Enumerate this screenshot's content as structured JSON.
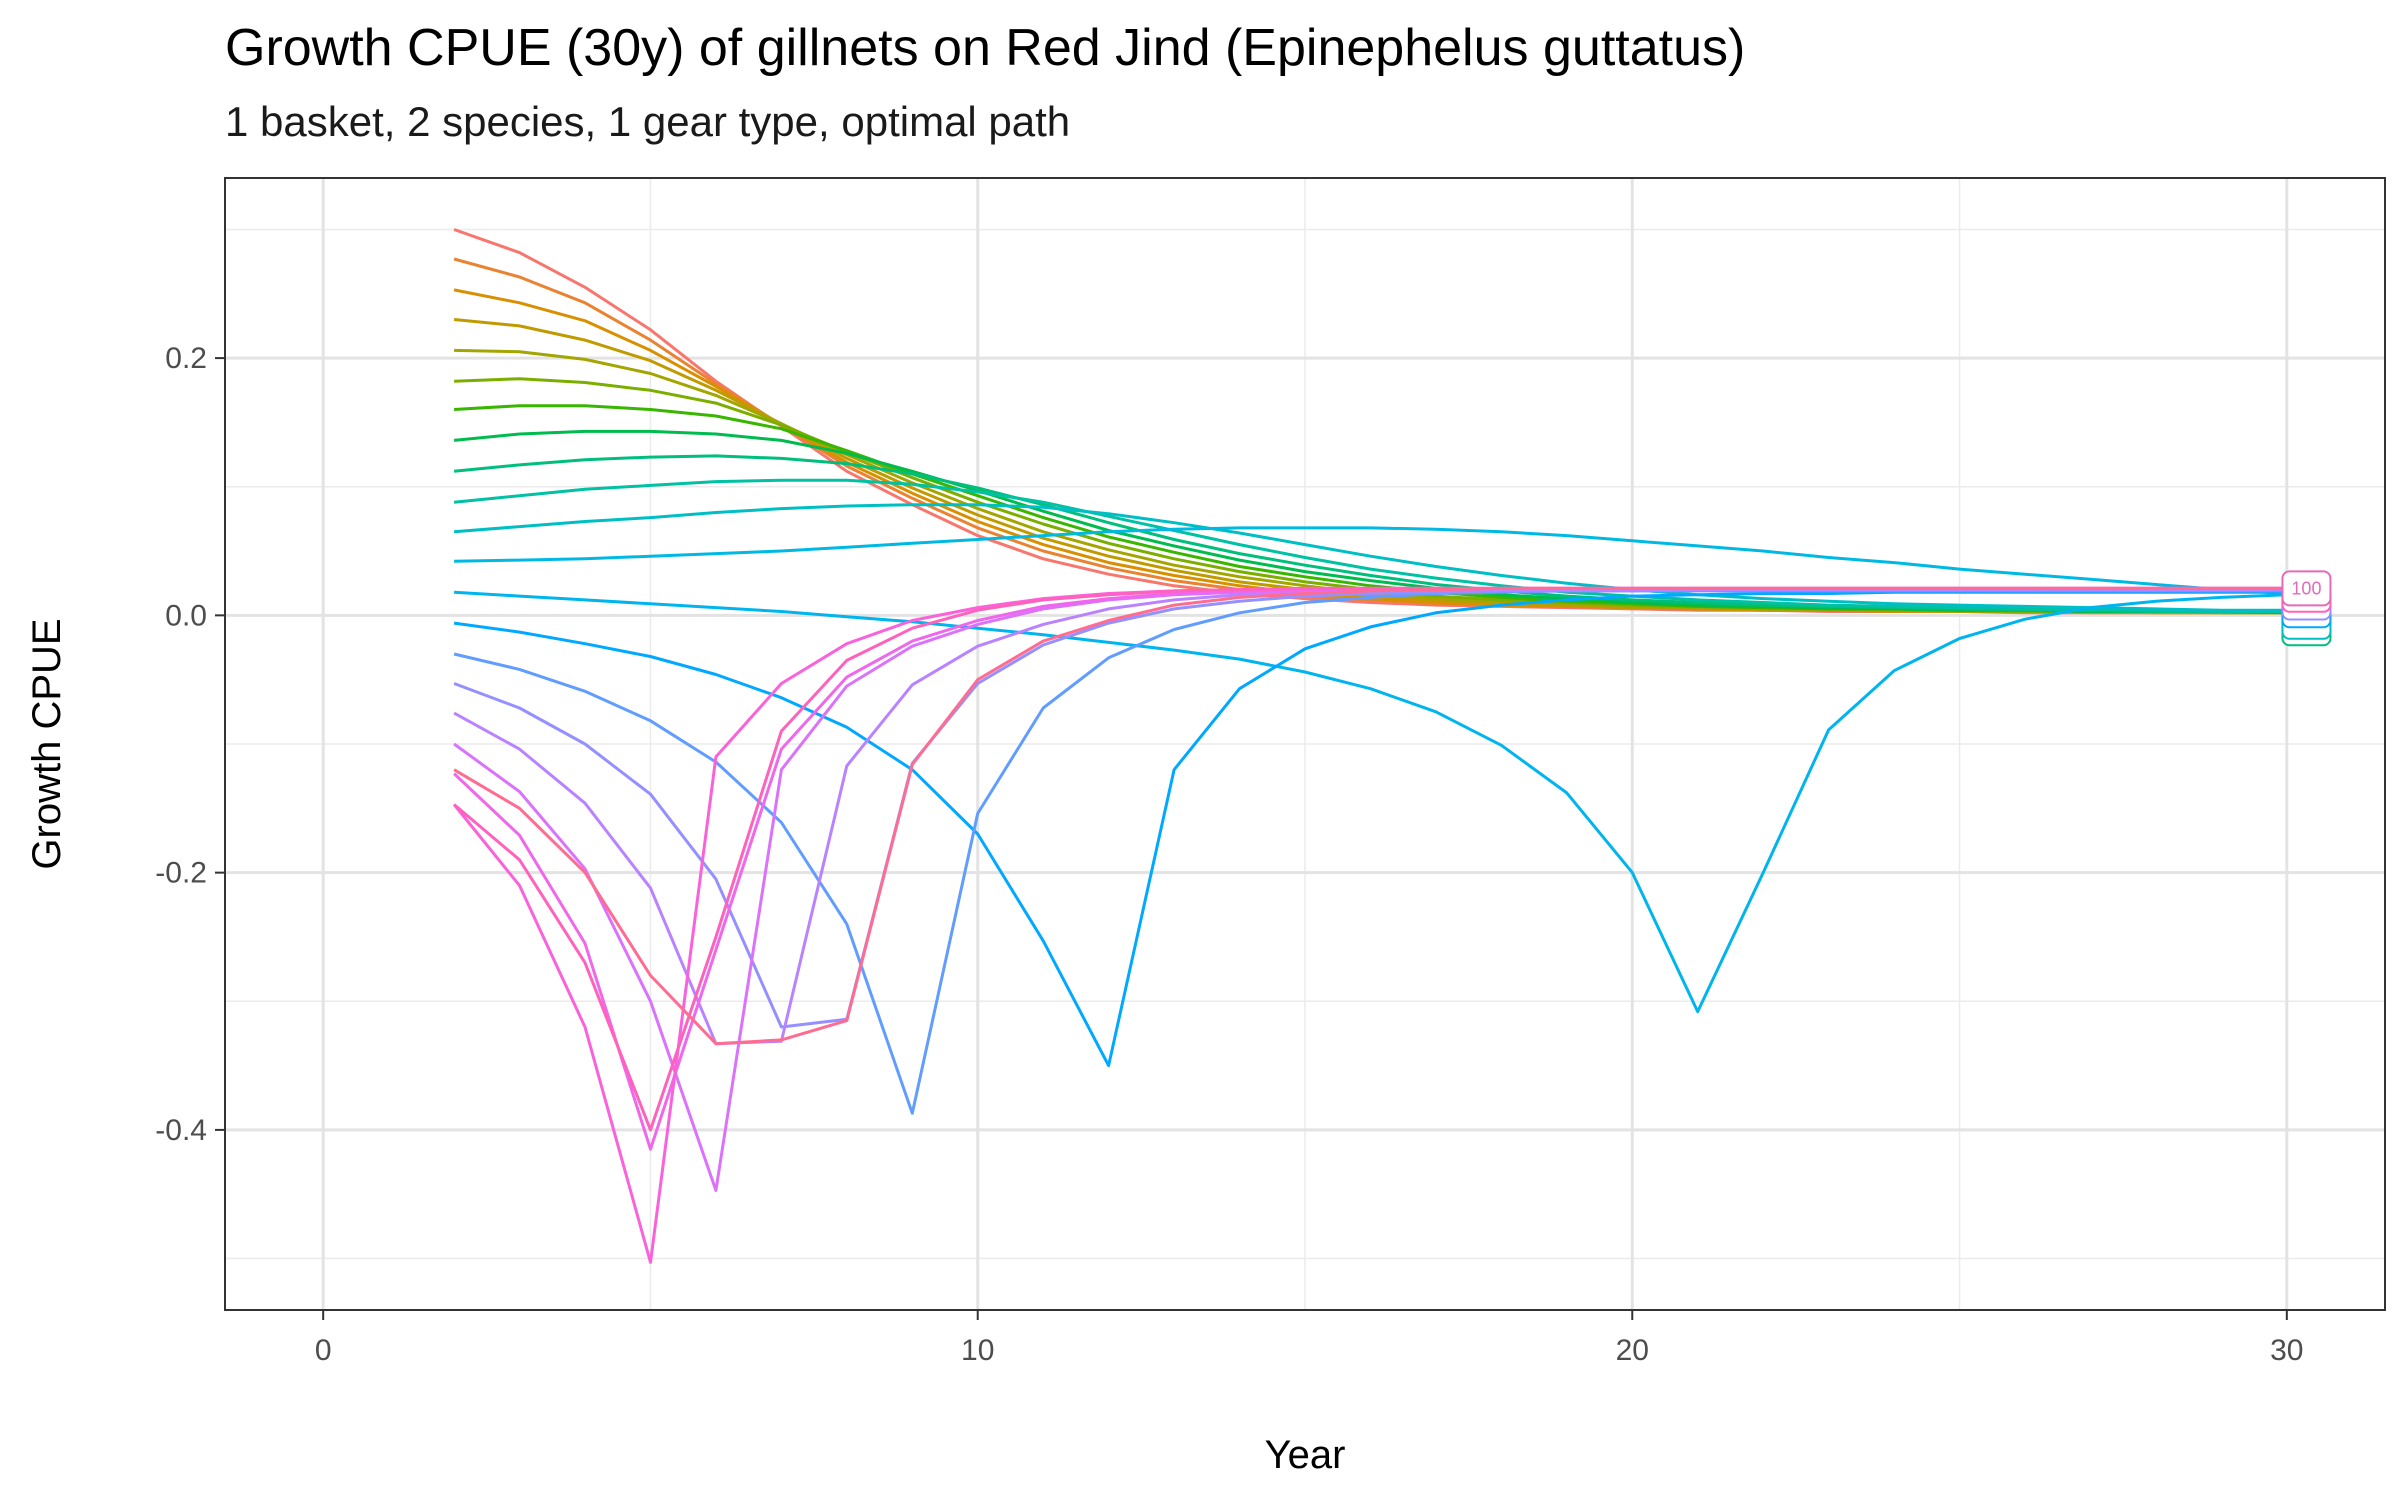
{
  "chart_data": {
    "type": "line",
    "title": "Growth CPUE (30y) of gillnets on Red Jind (Epinephelus guttatus)",
    "subtitle": "1 basket, 2 species, 1 gear type, optimal path",
    "xlabel": "Year",
    "ylabel": "Growth CPUE",
    "xlim": [
      -1.5,
      31.5
    ],
    "ylim": [
      -0.54,
      0.34
    ],
    "x_ticks": [
      0,
      10,
      20,
      30
    ],
    "x_tick_labels": [
      "0",
      "10",
      "20",
      "30"
    ],
    "y_ticks": [
      -0.4,
      -0.2,
      0.0,
      0.2
    ],
    "y_tick_labels": [
      "-0.4",
      "-0.2",
      "0.0",
      "0.2"
    ],
    "grid": true,
    "legend": "none",
    "end_label": {
      "text": "100",
      "x": 30.3,
      "y": 0.021,
      "color": "#e46bb8"
    },
    "x": [
      2,
      3,
      4,
      5,
      6,
      7,
      8,
      9,
      10,
      11,
      12,
      13,
      14,
      15,
      16,
      17,
      18,
      19,
      20,
      21,
      22,
      23,
      24,
      25,
      26,
      27,
      28,
      29,
      30
    ],
    "series": [
      {
        "color": "#f8766d",
        "values": [
          0.3,
          0.282,
          0.255,
          0.222,
          0.182,
          0.147,
          0.112,
          0.086,
          0.062,
          0.044,
          0.032,
          0.023,
          0.017,
          0.013,
          0.01,
          0.008,
          0.007,
          0.006,
          0.005,
          0.004,
          0.004,
          0.003,
          0.003,
          0.003,
          0.002,
          0.002,
          0.002,
          0.002,
          0.002
        ]
      },
      {
        "color": "#ea8331",
        "values": [
          0.277,
          0.263,
          0.243,
          0.214,
          0.18,
          0.148,
          0.116,
          0.091,
          0.068,
          0.05,
          0.037,
          0.027,
          0.02,
          0.015,
          0.012,
          0.009,
          0.008,
          0.007,
          0.006,
          0.005,
          0.004,
          0.004,
          0.003,
          0.003,
          0.003,
          0.002,
          0.002,
          0.002,
          0.002
        ]
      },
      {
        "color": "#d89000",
        "values": [
          0.253,
          0.243,
          0.229,
          0.206,
          0.178,
          0.148,
          0.119,
          0.095,
          0.073,
          0.055,
          0.041,
          0.031,
          0.023,
          0.017,
          0.013,
          0.01,
          0.008,
          0.007,
          0.006,
          0.005,
          0.004,
          0.004,
          0.003,
          0.003,
          0.003,
          0.003,
          0.002,
          0.002,
          0.002
        ]
      },
      {
        "color": "#c09b00",
        "values": [
          0.23,
          0.225,
          0.214,
          0.198,
          0.175,
          0.149,
          0.122,
          0.099,
          0.078,
          0.06,
          0.046,
          0.035,
          0.026,
          0.02,
          0.015,
          0.012,
          0.009,
          0.008,
          0.006,
          0.005,
          0.005,
          0.004,
          0.004,
          0.003,
          0.003,
          0.003,
          0.002,
          0.002,
          0.002
        ]
      },
      {
        "color": "#a3a500",
        "values": [
          0.206,
          0.205,
          0.199,
          0.188,
          0.171,
          0.149,
          0.125,
          0.103,
          0.083,
          0.065,
          0.051,
          0.039,
          0.03,
          0.023,
          0.017,
          0.013,
          0.011,
          0.009,
          0.007,
          0.006,
          0.005,
          0.004,
          0.004,
          0.003,
          0.003,
          0.003,
          0.003,
          0.002,
          0.002
        ]
      },
      {
        "color": "#7cae00",
        "values": [
          0.182,
          0.184,
          0.181,
          0.175,
          0.165,
          0.148,
          0.127,
          0.107,
          0.088,
          0.071,
          0.056,
          0.044,
          0.034,
          0.026,
          0.02,
          0.015,
          0.012,
          0.01,
          0.008,
          0.007,
          0.006,
          0.005,
          0.004,
          0.004,
          0.003,
          0.003,
          0.003,
          0.002,
          0.002
        ]
      },
      {
        "color": "#39b600",
        "values": [
          0.16,
          0.163,
          0.163,
          0.16,
          0.155,
          0.145,
          0.128,
          0.11,
          0.093,
          0.076,
          0.061,
          0.049,
          0.038,
          0.03,
          0.023,
          0.018,
          0.014,
          0.011,
          0.009,
          0.007,
          0.006,
          0.005,
          0.005,
          0.004,
          0.004,
          0.003,
          0.003,
          0.003,
          0.002
        ]
      },
      {
        "color": "#00bb4e",
        "values": [
          0.136,
          0.141,
          0.143,
          0.143,
          0.141,
          0.136,
          0.126,
          0.112,
          0.097,
          0.081,
          0.066,
          0.054,
          0.043,
          0.034,
          0.027,
          0.021,
          0.016,
          0.013,
          0.01,
          0.008,
          0.007,
          0.006,
          0.005,
          0.004,
          0.004,
          0.003,
          0.003,
          0.003,
          0.002
        ]
      },
      {
        "color": "#00bf7d",
        "values": [
          0.112,
          0.117,
          0.121,
          0.123,
          0.124,
          0.122,
          0.118,
          0.11,
          0.099,
          0.086,
          0.072,
          0.059,
          0.048,
          0.039,
          0.031,
          0.024,
          0.019,
          0.015,
          0.012,
          0.01,
          0.008,
          0.007,
          0.006,
          0.005,
          0.004,
          0.004,
          0.003,
          0.003,
          0.003
        ]
      },
      {
        "color": "#00c1a3",
        "values": [
          0.088,
          0.093,
          0.098,
          0.101,
          0.104,
          0.105,
          0.105,
          0.102,
          0.096,
          0.088,
          0.077,
          0.066,
          0.055,
          0.045,
          0.036,
          0.029,
          0.023,
          0.018,
          0.015,
          0.012,
          0.01,
          0.008,
          0.007,
          0.006,
          0.005,
          0.004,
          0.004,
          0.003,
          0.003
        ]
      },
      {
        "color": "#00bfc4",
        "values": [
          0.065,
          0.069,
          0.073,
          0.076,
          0.08,
          0.083,
          0.085,
          0.086,
          0.086,
          0.084,
          0.079,
          0.072,
          0.064,
          0.055,
          0.046,
          0.038,
          0.031,
          0.025,
          0.02,
          0.016,
          0.013,
          0.011,
          0.009,
          0.008,
          0.007,
          0.006,
          0.005,
          0.004,
          0.004
        ]
      },
      {
        "color": "#00b9e3",
        "values": [
          0.042,
          0.043,
          0.044,
          0.046,
          0.048,
          0.05,
          0.053,
          0.056,
          0.059,
          0.062,
          0.065,
          0.067,
          0.068,
          0.068,
          0.068,
          0.067,
          0.065,
          0.062,
          0.058,
          0.054,
          0.05,
          0.045,
          0.041,
          0.036,
          0.032,
          0.028,
          0.024,
          0.02,
          0.017
        ]
      },
      {
        "color": "#00b5ee",
        "values": [
          0.018,
          0.015,
          0.012,
          0.009,
          0.006,
          0.003,
          -0.001,
          -0.005,
          -0.01,
          -0.015,
          -0.021,
          -0.027,
          -0.034,
          -0.044,
          -0.057,
          -0.075,
          -0.101,
          -0.138,
          -0.2,
          -0.308,
          -0.2,
          -0.089,
          -0.043,
          -0.018,
          -0.003,
          0.006,
          0.011,
          0.014,
          0.016
        ]
      },
      {
        "color": "#00a9ff",
        "values": [
          -0.006,
          -0.013,
          -0.022,
          -0.032,
          -0.046,
          -0.064,
          -0.087,
          -0.12,
          -0.17,
          -0.253,
          -0.35,
          -0.12,
          -0.057,
          -0.026,
          -0.009,
          0.002,
          0.008,
          0.012,
          0.015,
          0.016,
          0.017,
          0.017,
          0.018,
          0.018,
          0.018,
          0.018,
          0.018,
          0.018,
          0.018
        ]
      },
      {
        "color": "#619cff",
        "values": [
          -0.03,
          -0.042,
          -0.059,
          -0.082,
          -0.114,
          -0.161,
          -0.24,
          -0.387,
          -0.154,
          -0.072,
          -0.033,
          -0.011,
          0.002,
          0.01,
          0.014,
          0.017,
          0.018,
          0.019,
          0.019,
          0.019,
          0.019,
          0.019,
          0.019,
          0.019,
          0.019,
          0.019,
          0.019,
          0.019,
          0.019
        ]
      },
      {
        "color": "#9590ff",
        "values": [
          -0.053,
          -0.072,
          -0.1,
          -0.139,
          -0.205,
          -0.32,
          -0.314,
          -0.115,
          -0.053,
          -0.023,
          -0.006,
          0.005,
          0.011,
          0.015,
          0.017,
          0.018,
          0.019,
          0.019,
          0.019,
          0.02,
          0.02,
          0.02,
          0.02,
          0.02,
          0.02,
          0.02,
          0.02,
          0.02,
          0.02
        ]
      },
      {
        "color": "#b983ff",
        "values": [
          -0.076,
          -0.104,
          -0.146,
          -0.212,
          -0.333,
          -0.331,
          -0.117,
          -0.054,
          -0.024,
          -0.007,
          0.005,
          0.012,
          0.016,
          0.018,
          0.019,
          0.02,
          0.02,
          0.02,
          0.02,
          0.02,
          0.02,
          0.02,
          0.02,
          0.02,
          0.02,
          0.02,
          0.02,
          0.02,
          0.02
        ]
      },
      {
        "color": "#db72fb",
        "values": [
          -0.1,
          -0.137,
          -0.197,
          -0.3,
          -0.447,
          -0.12,
          -0.055,
          -0.024,
          -0.007,
          0.005,
          0.012,
          0.016,
          0.018,
          0.019,
          0.02,
          0.02,
          0.021,
          0.021,
          0.021,
          0.021,
          0.021,
          0.021,
          0.021,
          0.021,
          0.021,
          0.021,
          0.021,
          0.021,
          0.021
        ]
      },
      {
        "color": "#ef67eb",
        "values": [
          -0.123,
          -0.171,
          -0.255,
          -0.415,
          -0.26,
          -0.104,
          -0.048,
          -0.02,
          -0.004,
          0.007,
          0.013,
          0.017,
          0.019,
          0.02,
          0.021,
          0.021,
          0.021,
          0.021,
          0.021,
          0.021,
          0.021,
          0.021,
          0.021,
          0.021,
          0.021,
          0.021,
          0.021,
          0.021,
          0.021
        ]
      },
      {
        "color": "#fa62db",
        "values": [
          -0.147,
          -0.21,
          -0.32,
          -0.503,
          -0.11,
          -0.053,
          -0.022,
          -0.004,
          0.006,
          0.013,
          0.017,
          0.019,
          0.02,
          0.021,
          0.021,
          0.021,
          0.021,
          0.021,
          0.021,
          0.021,
          0.021,
          0.021,
          0.021,
          0.021,
          0.021,
          0.021,
          0.021,
          0.021,
          0.021
        ]
      },
      {
        "color": "#ff62bc",
        "values": [
          -0.147,
          -0.19,
          -0.27,
          -0.4,
          -0.25,
          -0.09,
          -0.035,
          -0.01,
          0.004,
          0.012,
          0.016,
          0.019,
          0.02,
          0.021,
          0.021,
          0.021,
          0.021,
          0.021,
          0.021,
          0.021,
          0.021,
          0.021,
          0.021,
          0.021,
          0.021,
          0.021,
          0.021,
          0.021,
          0.021
        ]
      },
      {
        "color": "#ff6c91",
        "values": [
          -0.12,
          -0.15,
          -0.2,
          -0.28,
          -0.333,
          -0.33,
          -0.315,
          -0.116,
          -0.05,
          -0.02,
          -0.004,
          0.008,
          0.014,
          0.017,
          0.019,
          0.02,
          0.021,
          0.021,
          0.021,
          0.021,
          0.021,
          0.021,
          0.021,
          0.021,
          0.021,
          0.021,
          0.021,
          0.021,
          0.021
        ]
      }
    ],
    "end_boxes": [
      {
        "color": "#00bf7d",
        "y": -0.01
      },
      {
        "color": "#00bfc4",
        "y": -0.005
      },
      {
        "color": "#00a9ff",
        "y": 0.004
      },
      {
        "color": "#9590ff",
        "y": 0.01
      },
      {
        "color": "#ff62bc",
        "y": 0.016
      }
    ]
  }
}
